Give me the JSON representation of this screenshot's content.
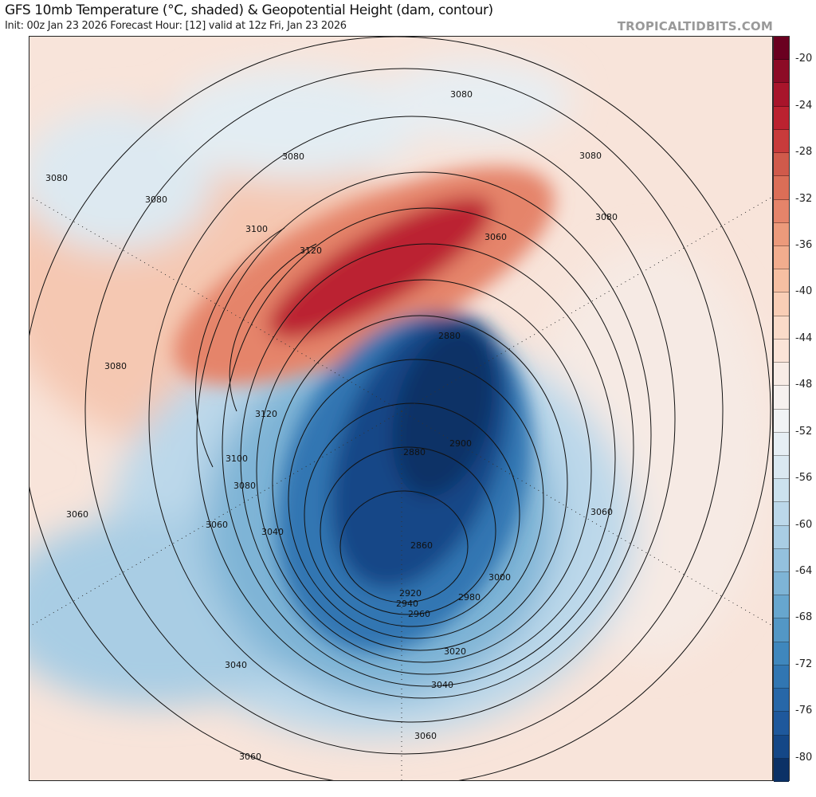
{
  "header": {
    "title": "GFS 10mb Temperature (°C, shaded) & Geopotential Height (dam, contour)",
    "subtitle": "Init: 00z Jan 23 2026   Forecast Hour: [12]   valid at 12z Fri, Jan 23 2026",
    "brand": "TROPICALTIDBITS.COM"
  },
  "colorbar": {
    "min": -82,
    "max": -18,
    "step": 2,
    "labels": [
      "-20",
      "-24",
      "-28",
      "-32",
      "-36",
      "-40",
      "-44",
      "-48",
      "-52",
      "-56",
      "-60",
      "-64",
      "-68",
      "-72",
      "-76",
      "-80"
    ],
    "colors": [
      "#6a0020",
      "#8c0b26",
      "#a8152b",
      "#bb2230",
      "#c83b3b",
      "#d05a4b",
      "#db6e57",
      "#e5846a",
      "#ec9a7b",
      "#f2ad8e",
      "#f6bfa2",
      "#f9ceb6",
      "#fadbc9",
      "#fbe4d8",
      "#f8ece6",
      "#f6f1ef",
      "#f1f3f5",
      "#e6eef4",
      "#dae8f1",
      "#cce2ee",
      "#bcd8ea",
      "#a9cde4",
      "#94c1de",
      "#7eb4d6",
      "#67a6ce",
      "#5397c5",
      "#3f87bd",
      "#3176b2",
      "#2767a8",
      "#1e589c",
      "#144787",
      "#0b3166"
    ]
  },
  "map": {
    "contour_labels": [
      "3080",
      "3080",
      "3080",
      "3080",
      "3080",
      "3080",
      "3100",
      "3120",
      "3060",
      "3080",
      "2880",
      "3120",
      "2900",
      "2880",
      "3100",
      "3080",
      "3060",
      "3060",
      "3040",
      "3060",
      "2860",
      "3000",
      "2920",
      "2980",
      "2940",
      "2960",
      "3020",
      "3040",
      "3040",
      "3060",
      "3060"
    ]
  }
}
